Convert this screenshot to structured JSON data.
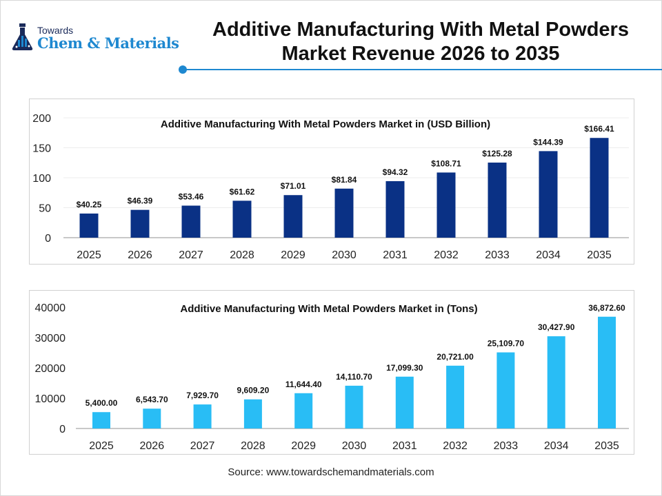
{
  "logo": {
    "top": "Towards",
    "main": "Chem & Materials"
  },
  "title": {
    "line1": "Additive Manufacturing With Metal Powders",
    "line2": "Market Revenue 2026 to 2035"
  },
  "source": "Source: www.towardschemandmaterials.com",
  "colors": {
    "accent": "#1e88d0",
    "bar_usd": "#0a3185",
    "bar_tons": "#29bdf5"
  },
  "chart_data": [
    {
      "type": "bar",
      "title": "Additive Manufacturing With Metal Powders Market in (USD Billion)",
      "categories": [
        "2025",
        "2026",
        "2027",
        "2028",
        "2029",
        "2030",
        "2031",
        "2032",
        "2033",
        "2034",
        "2035"
      ],
      "values": [
        40.25,
        46.39,
        53.46,
        61.62,
        71.01,
        81.84,
        94.32,
        108.71,
        125.28,
        144.39,
        166.41
      ],
      "labels": [
        "$40.25",
        "$46.39",
        "$53.46",
        "$61.62",
        "$71.01",
        "$81.84",
        "$94.32",
        "$108.71",
        "$125.28",
        "$144.39",
        "$166.41"
      ],
      "yticks": [
        0,
        50,
        100,
        150,
        200
      ],
      "ylim": [
        0,
        200
      ],
      "grid": true,
      "color": "#0a3185"
    },
    {
      "type": "bar",
      "title": "Additive Manufacturing With Metal Powders Market in (Tons)",
      "categories": [
        "2025",
        "2026",
        "2027",
        "2028",
        "2029",
        "2030",
        "2031",
        "2032",
        "2033",
        "2034",
        "2035"
      ],
      "values": [
        5400.0,
        6543.7,
        7929.7,
        9609.2,
        11644.4,
        14110.7,
        17099.3,
        20721.0,
        25109.7,
        30427.9,
        36872.6
      ],
      "labels": [
        "5,400.00",
        "6,543.70",
        "7,929.70",
        "9,609.20",
        "11,644.40",
        "14,110.70",
        "17,099.30",
        "20,721.00",
        "25,109.70",
        "30,427.90",
        "36,872.60"
      ],
      "yticks": [
        0,
        10000,
        20000,
        30000,
        40000
      ],
      "ylim": [
        0,
        40000
      ],
      "grid": false,
      "color": "#29bdf5"
    }
  ]
}
